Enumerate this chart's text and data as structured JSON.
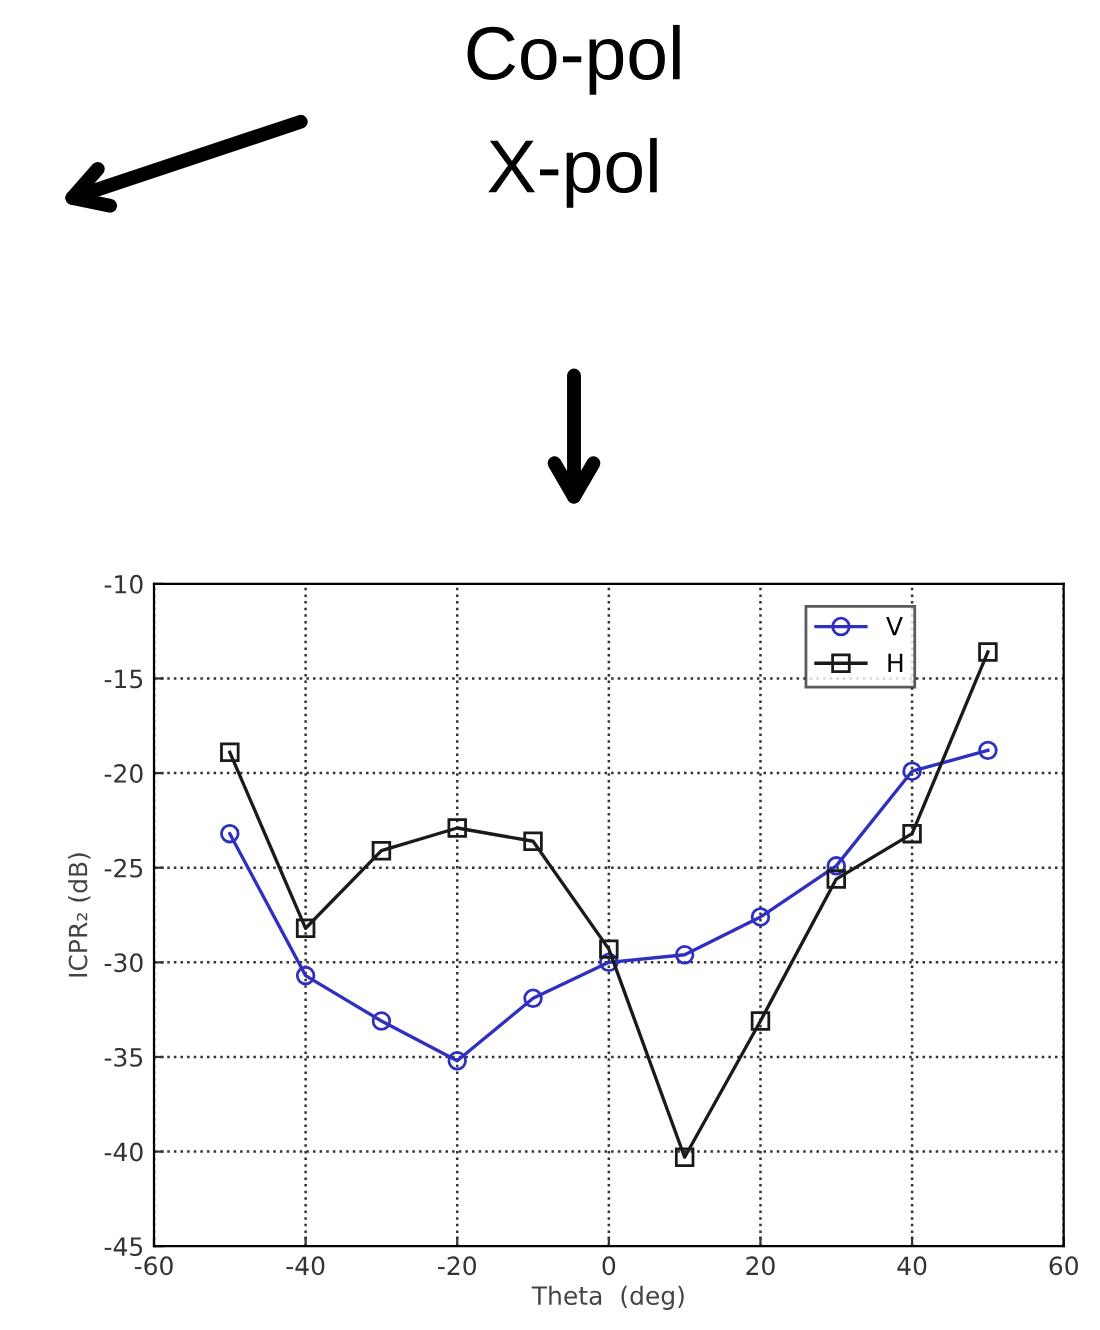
{
  "chart_data": {
    "type": "line",
    "x": [
      -50,
      -40,
      -30,
      -20,
      -10,
      0,
      10,
      20,
      30,
      40,
      50
    ],
    "series": [
      {
        "name": "V",
        "color": "#3030c0",
        "marker": "circle",
        "values": [
          -23.2,
          -30.7,
          -33.1,
          -35.2,
          -31.9,
          -30.0,
          -29.6,
          -27.6,
          -24.9,
          -19.9,
          -18.8
        ]
      },
      {
        "name": "H",
        "color": "#1a1a1a",
        "marker": "square",
        "values": [
          -18.9,
          -28.2,
          -24.1,
          -22.9,
          -23.6,
          -29.3,
          -40.3,
          -33.1,
          -25.6,
          -23.2,
          -13.6
        ]
      }
    ],
    "xlabel": "Theta  (deg)",
    "ylabel": "ICPR₂ (dB)",
    "xlim": [
      -60,
      60
    ],
    "xticks": [
      -60,
      -40,
      -20,
      0,
      20,
      40,
      60
    ],
    "ylim": [
      -45,
      -10
    ],
    "yticks": [
      -45,
      -40,
      -35,
      -30,
      -25,
      -20,
      -15,
      -10
    ],
    "grid": true,
    "legend": "top right",
    "line_style": "solid",
    "annotations": [
      "Co-pol",
      "X-pol"
    ]
  }
}
